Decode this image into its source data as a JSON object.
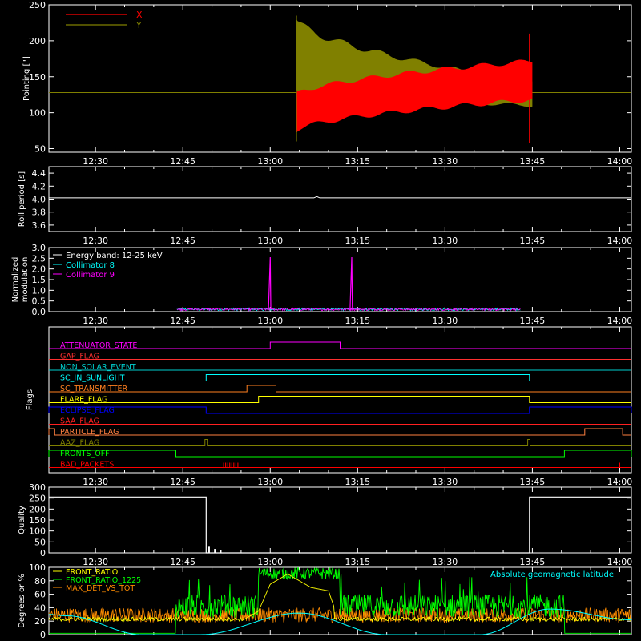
{
  "time_axis": {
    "ticks": [
      "12:30",
      "12:45",
      "13:00",
      "13:15",
      "13:30",
      "13:45",
      "14:00"
    ],
    "tick_minutes": [
      750,
      765,
      780,
      795,
      810,
      825,
      840
    ],
    "range_minutes": [
      742,
      842
    ]
  },
  "chart_data": [
    {
      "id": "pointing",
      "type": "line",
      "ylabel": "Pointing [\"]",
      "ylim": [
        45,
        250
      ],
      "yticks": [
        50,
        100,
        150,
        200,
        250
      ],
      "legend": [
        "X",
        "Y"
      ],
      "legend_position": "top-left",
      "colors": {
        "X": "#ff0000",
        "Y": "#808000",
        "rest": "#808000"
      },
      "series": [
        {
          "name": "X",
          "envelope_start": 742,
          "data_start": 784.5,
          "data_end": 825,
          "end": 842,
          "rest_value": 128,
          "low_start": 75,
          "low_end": 118,
          "high_start": 125,
          "high_end": 172
        },
        {
          "name": "Y",
          "envelope_start": 742,
          "data_start": 784.5,
          "data_end": 825,
          "end": 842,
          "rest_value": 128,
          "low_start": 132,
          "low_end": 110,
          "high_start": 230,
          "high_end": 142
        }
      ],
      "spikes": [
        {
          "x": 824.5,
          "ymin": 58,
          "ymax": 210
        },
        {
          "x": 784.5,
          "ymin": 60,
          "ymax": 235
        }
      ]
    },
    {
      "id": "roll_period",
      "type": "line",
      "ylabel": "Roll period [s]",
      "ylim": [
        3.5,
        4.5
      ],
      "yticks": [
        3.6,
        3.8,
        4.0,
        4.2,
        4.4
      ],
      "yticklabels": [
        "3.6",
        "3.8",
        "4.0",
        "4.2",
        "4.4"
      ],
      "value": 4.02,
      "blip": {
        "x": 788,
        "y": 4.04
      }
    },
    {
      "id": "modulation",
      "type": "line",
      "ylabel": [
        "Normalized",
        "modulation"
      ],
      "ylim": [
        0,
        3.0
      ],
      "yticks": [
        0,
        0.5,
        1.0,
        1.5,
        2.0,
        2.5,
        3.0
      ],
      "yticklabels": [
        "0.0",
        "0.5",
        "1.0",
        "1.5",
        "2.0",
        "2.5",
        "3.0"
      ],
      "legend": [
        "Energy band: 12-25 keV",
        "Collimator 8",
        "Collimator 9"
      ],
      "legend_colors": [
        "#ffffff",
        "#00ffff",
        "#ff00ff"
      ],
      "noise_range": [
        764,
        823
      ],
      "spikes": [
        {
          "x": 780,
          "y": 2.55
        },
        {
          "x": 794,
          "y": 2.55
        }
      ]
    },
    {
      "id": "flags",
      "type": "step",
      "ylabel": "Flags",
      "flags": [
        {
          "name": "ATTENUATOR_STATE",
          "color": "#ff00ff",
          "on": [
            [
              780,
              792
            ]
          ]
        },
        {
          "name": "GAP_FLAG",
          "color": "#ff3030",
          "on": []
        },
        {
          "name": "NON_SOLAR_EVENT",
          "color": "#00d0d0",
          "on": []
        },
        {
          "name": "SC_IN_SUNLIGHT",
          "color": "#00ffff",
          "on": [
            [
              769,
              824.5
            ]
          ]
        },
        {
          "name": "SC_TRANSMITTER",
          "color": "#ff8020",
          "on": [
            [
              776,
              781
            ]
          ]
        },
        {
          "name": "FLARE_FLAG",
          "color": "#ffff00",
          "on": [
            [
              778,
              824.5
            ]
          ]
        },
        {
          "name": "ECLIPSE_FLAG",
          "color": "#0000ff",
          "on": [
            [
              742,
              769
            ],
            [
              824.5,
              842
            ]
          ]
        },
        {
          "name": "SAA_FLAG",
          "color": "#ff2020",
          "on": []
        },
        {
          "name": "PARTICLE_FLAG",
          "color": "#ff8040",
          "on": [
            [
              742,
              743
            ],
            [
              834,
              840.5
            ]
          ]
        },
        {
          "name": "AAZ_FLAG",
          "color": "#808000",
          "on": [
            [
              768.8,
              769.2
            ],
            [
              824.2,
              824.6
            ]
          ]
        },
        {
          "name": "FRONTS_OFF",
          "color": "#00ff00",
          "on": [
            [
              742,
              763.8
            ],
            [
              830.5,
              842
            ]
          ]
        },
        {
          "name": "BAD_PACKETS",
          "color": "#ff0000",
          "on": [],
          "ticks": [
            [
              772,
              774.5
            ],
            [
              840,
              840.3
            ]
          ]
        }
      ]
    },
    {
      "id": "quality",
      "type": "step",
      "ylabel": "Quality",
      "ylim": [
        0,
        300
      ],
      "yticks": [
        0,
        50,
        100,
        150,
        200,
        250,
        300
      ],
      "high_value": 255,
      "high_ranges": [
        [
          742,
          769
        ],
        [
          824.5,
          842
        ]
      ],
      "spikes": [
        [
          769.5,
          28
        ],
        [
          770.5,
          18
        ],
        [
          771.5,
          12
        ]
      ]
    },
    {
      "id": "ratios",
      "type": "line",
      "ylabel": "Degrees or %",
      "ylim": [
        0,
        100
      ],
      "yticks": [
        0,
        20,
        40,
        60,
        80,
        100
      ],
      "legend": [
        "FRONT_RATIO",
        "FRONT_RATIO_1225",
        "MAX_DET_VS_TOT"
      ],
      "legend_colors": [
        "#ffff00",
        "#00ff00",
        "#ff8c00"
      ],
      "annotation": "Absolute geomagnetic latitude",
      "annotation_color": "#00ffff",
      "latitude": {
        "x": [
          742,
          745,
          758,
          768,
          785,
          800,
          816,
          828,
          842
        ],
        "y": [
          30,
          28,
          0,
          0,
          32,
          0,
          0,
          38,
          22
        ]
      },
      "green_active": [
        [
          763.8,
          830.5
        ]
      ],
      "yellow_hump": {
        "x": [
          775,
          778,
          780,
          783,
          784,
          787,
          790,
          791
        ],
        "y": [
          20,
          35,
          75,
          90,
          85,
          70,
          65,
          40
        ]
      }
    }
  ]
}
